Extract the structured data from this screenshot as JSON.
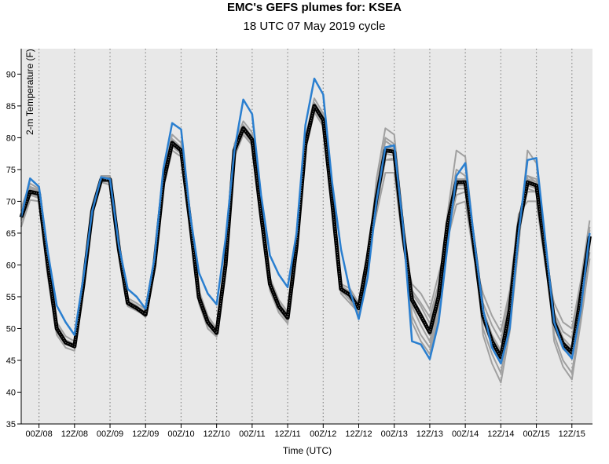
{
  "chart_data": {
    "type": "line",
    "title": "EMC's GEFS plumes for: KSEA",
    "subtitle": "18 UTC 07 May 2019 cycle",
    "xlabel": "Time (UTC)",
    "ylabel": "2-m Temperature (F)",
    "ylim": [
      35,
      94
    ],
    "yticks": [
      35,
      40,
      45,
      50,
      55,
      60,
      65,
      70,
      75,
      80,
      85,
      90
    ],
    "xlim": [
      0,
      8.04
    ],
    "xticks": [
      {
        "x": 0.25,
        "label": "00Z/08"
      },
      {
        "x": 0.75,
        "label": "12Z/08"
      },
      {
        "x": 1.25,
        "label": "00Z/09"
      },
      {
        "x": 1.75,
        "label": "12Z/09"
      },
      {
        "x": 2.25,
        "label": "00Z/10"
      },
      {
        "x": 2.75,
        "label": "12Z/10"
      },
      {
        "x": 3.25,
        "label": "00Z/11"
      },
      {
        "x": 3.75,
        "label": "12Z/11"
      },
      {
        "x": 4.25,
        "label": "00Z/12"
      },
      {
        "x": 4.75,
        "label": "12Z/12"
      },
      {
        "x": 5.25,
        "label": "00Z/13"
      },
      {
        "x": 5.75,
        "label": "12Z/13"
      },
      {
        "x": 6.25,
        "label": "00Z/14"
      },
      {
        "x": 6.75,
        "label": "12Z/14"
      },
      {
        "x": 7.25,
        "label": "00Z/15"
      },
      {
        "x": 7.75,
        "label": "12Z/15"
      }
    ],
    "x_step": 0.125,
    "grid": "vertical-dotted",
    "colors": {
      "plot_bg": "#e8e8e8",
      "members": "#a0a0a0",
      "mean": "#000000",
      "control": "#2a7fd0"
    },
    "series": [
      {
        "role": "mean",
        "values": [
          67.5,
          71.5,
          71.2,
          60,
          50,
          47.8,
          47.2,
          57,
          68.5,
          73.4,
          73.4,
          62.5,
          54,
          53.2,
          52.2,
          60,
          73,
          79.2,
          78,
          67,
          54.9,
          51,
          49.3,
          60,
          78,
          81.5,
          79.7,
          68,
          57,
          53.5,
          51.7,
          63,
          79,
          85,
          82.8,
          70,
          56.2,
          55.3,
          53.2,
          61,
          70.5,
          78,
          77.8,
          65,
          54.5,
          52,
          49.4,
          55,
          66.5,
          73,
          73,
          63,
          52,
          48,
          45.5,
          53,
          66,
          73,
          72.5,
          62,
          51,
          47.6,
          46.2,
          55,
          64.5
        ]
      },
      {
        "role": "control",
        "values": [
          67.6,
          73.6,
          72.3,
          62,
          53.6,
          51,
          49,
          58,
          68.5,
          73.8,
          73.5,
          63,
          56.2,
          55,
          53.1,
          61,
          75,
          82.3,
          81.3,
          68,
          58.8,
          55.5,
          53.8,
          64,
          78,
          86,
          83.7,
          71,
          61.5,
          58.5,
          56.5,
          65,
          82,
          89.3,
          86.8,
          73,
          62.5,
          56,
          51.5,
          58,
          70,
          78.5,
          78.8,
          66,
          48,
          47.5,
          45.2,
          51,
          63,
          74,
          76,
          64,
          53,
          47,
          44.5,
          50,
          65,
          76.5,
          76.8,
          64,
          51,
          47,
          45.3,
          53,
          65
        ]
      },
      {
        "role": "member",
        "values": [
          67,
          71,
          70.8,
          59,
          49.5,
          47.5,
          47,
          56.5,
          68.2,
          73.2,
          73,
          62,
          53.5,
          52.8,
          52,
          59.5,
          72.5,
          78.6,
          77.5,
          66.5,
          54.5,
          50.5,
          49,
          59.5,
          77.5,
          81,
          79.2,
          67.5,
          56.5,
          53,
          51.2,
          62.5,
          78.5,
          84.5,
          82.3,
          69.5,
          55.8,
          54.8,
          52.8,
          60.5,
          70,
          77.5,
          77.2,
          64.5,
          54,
          51.5,
          49,
          54.5,
          66,
          72.5,
          72.5,
          62.5,
          51.5,
          47.5,
          45,
          52.5,
          65.5,
          72.5,
          72,
          61.5,
          50.5,
          47.2,
          45.8,
          54.5,
          64
        ]
      },
      {
        "role": "member",
        "values": [
          68,
          72,
          71.6,
          60.5,
          50.5,
          48.2,
          47.6,
          57.5,
          69,
          73.8,
          73.8,
          63,
          54.4,
          53.6,
          52.6,
          60.5,
          73.5,
          79.8,
          78.5,
          67.5,
          55.3,
          51.5,
          49.7,
          60.5,
          78.5,
          82,
          80.2,
          68.5,
          57.5,
          54,
          52.2,
          63.5,
          79.5,
          85.5,
          83.3,
          70.5,
          56.7,
          55.8,
          53.6,
          61.5,
          71,
          78.5,
          78.3,
          65.5,
          55,
          52.5,
          49.8,
          55.5,
          67,
          73.5,
          73.5,
          63.5,
          52.5,
          48.5,
          46,
          53.5,
          66.5,
          73.5,
          73,
          62.5,
          51.5,
          48,
          46.6,
          55.5,
          65
        ]
      },
      {
        "role": "member",
        "values": [
          66,
          70.2,
          70,
          58,
          49,
          47,
          46.5,
          56,
          68,
          73,
          72.6,
          61.5,
          53.8,
          53,
          51.8,
          59,
          72,
          78,
          77,
          66,
          54,
          50,
          48.7,
          59,
          77,
          80.5,
          78.8,
          67,
          56,
          52.5,
          50.8,
          62,
          78,
          84,
          81.8,
          69,
          55.5,
          54,
          52.5,
          60,
          72,
          80,
          79,
          66,
          52,
          49,
          47,
          53,
          67,
          75,
          74,
          63,
          50,
          46,
          43,
          51,
          64,
          74,
          73,
          62,
          49,
          45,
          43,
          52,
          62
        ]
      },
      {
        "role": "member",
        "values": [
          69,
          72.8,
          72,
          61,
          51,
          48.8,
          48,
          58,
          69.5,
          74,
          74,
          63.5,
          54.8,
          54,
          53,
          61,
          74,
          80.5,
          79.2,
          68,
          56,
          52,
          50,
          61,
          79,
          82.6,
          80.8,
          69,
          58,
          54.5,
          52.6,
          64,
          80,
          86.2,
          83.8,
          71,
          57,
          56.3,
          54,
          62,
          69,
          76.5,
          76.5,
          64,
          56,
          54,
          51.8,
          57,
          65,
          71,
          71.5,
          62,
          54,
          50.5,
          48,
          55,
          67,
          71.5,
          71.5,
          61,
          52.5,
          49.5,
          48.5,
          56.5,
          66
        ]
      },
      {
        "role": "member",
        "values": [
          66,
          71,
          70.5,
          59.5,
          50,
          47.6,
          47,
          57,
          68.6,
          73.2,
          73.1,
          62.2,
          53.6,
          53,
          51.9,
          60,
          72.8,
          79,
          78,
          67,
          54.8,
          50.8,
          49.2,
          60,
          77.8,
          81.2,
          79.5,
          68,
          56.8,
          53.2,
          51.5,
          63,
          78.8,
          84.8,
          82.6,
          70,
          56,
          54.5,
          52.4,
          59.5,
          73.5,
          81.5,
          80.5,
          66.5,
          51,
          48,
          46,
          52,
          68,
          78,
          77,
          64,
          49,
          44.5,
          41.5,
          49.5,
          63,
          78,
          76,
          62.5,
          48,
          44,
          42,
          51,
          61
        ]
      },
      {
        "role": "member",
        "values": [
          68.5,
          72.3,
          71.8,
          60.5,
          50.2,
          48,
          47.4,
          57.2,
          68.8,
          73.6,
          73.6,
          62.8,
          54.2,
          53.4,
          52.4,
          60.2,
          73.2,
          79.4,
          78.2,
          67.2,
          55,
          51.2,
          49.5,
          60.2,
          78.2,
          81.8,
          80,
          68.2,
          57.2,
          53.8,
          51.9,
          63.2,
          79.2,
          85.2,
          83,
          70.2,
          56.4,
          55.5,
          53.4,
          61.5,
          68,
          74.5,
          74.5,
          63,
          57,
          55.5,
          53,
          58.5,
          64,
          69.5,
          70,
          61,
          55.5,
          52,
          49.5,
          56,
          68,
          70,
          70,
          60,
          54,
          51,
          50,
          57.5,
          67
        ]
      },
      {
        "role": "member",
        "values": [
          67.2,
          71.3,
          71,
          59.8,
          49.8,
          47.7,
          47.1,
          56.8,
          68.4,
          73.3,
          73.2,
          62.3,
          53.9,
          53.1,
          52.1,
          59.8,
          72.9,
          79,
          77.8,
          66.8,
          54.7,
          50.9,
          49.2,
          59.8,
          77.8,
          81.3,
          79.5,
          67.8,
          56.8,
          53.3,
          51.5,
          62.8,
          78.8,
          84.8,
          82.5,
          69.8,
          56,
          55,
          53,
          60.8,
          71.5,
          79.5,
          78.5,
          65.2,
          53.5,
          50.5,
          48,
          54,
          65.5,
          72,
          72,
          62.5,
          51.2,
          47.4,
          44.8,
          52.5,
          65,
          72,
          71.5,
          61.5,
          50.2,
          46.8,
          45.5,
          54.5,
          63.5
        ]
      },
      {
        "role": "member",
        "values": [
          67.8,
          71.8,
          71.4,
          60.2,
          50.3,
          48,
          47.3,
          57.3,
          68.7,
          73.6,
          73.5,
          62.7,
          54.2,
          53.4,
          52.4,
          60.3,
          73.2,
          79.5,
          78.2,
          67.3,
          55.1,
          51.2,
          49.5,
          60.3,
          78.3,
          81.8,
          80,
          68.3,
          57.2,
          53.7,
          51.9,
          63.3,
          79.3,
          85.3,
          83.1,
          70.3,
          56.5,
          55.6,
          53.5,
          61.2,
          69.5,
          76.5,
          76.8,
          64.8,
          55.5,
          53.5,
          50.8,
          56,
          65,
          72.5,
          73.5,
          63.5,
          53,
          49,
          46.5,
          54,
          67,
          74,
          73.5,
          62.5,
          52,
          48.5,
          47,
          55.5,
          65.5
        ]
      }
    ]
  }
}
